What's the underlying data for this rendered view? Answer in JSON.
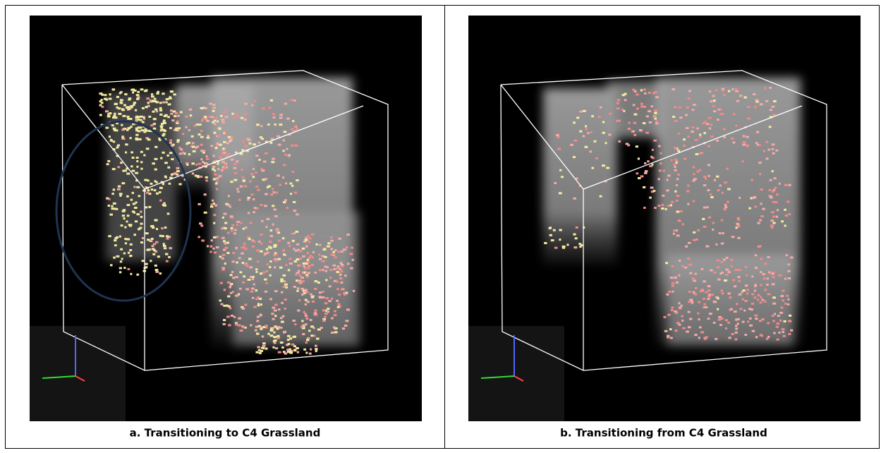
{
  "panels": [
    {
      "caption": "a. Transitioning to C4 Grassland"
    },
    {
      "caption": "b. Transitioning from C4 Grassland"
    }
  ]
}
